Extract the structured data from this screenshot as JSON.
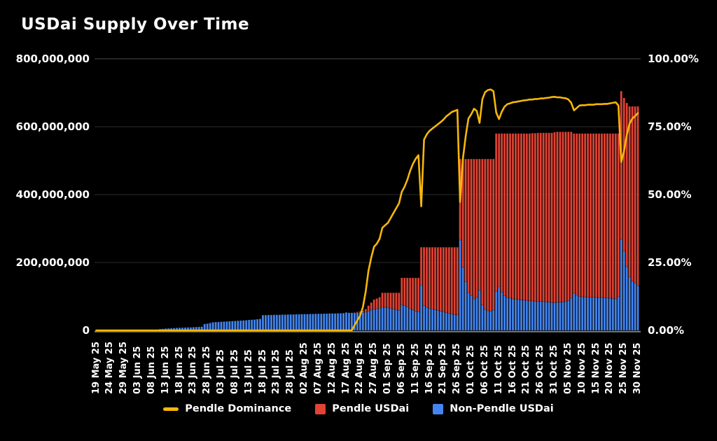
{
  "title": "USDai Supply Over Time",
  "colors": {
    "background": "#000000",
    "text": "#ffffff",
    "grid": "#2b2b2b",
    "grid_top": "#4a4a4a",
    "axis_line": "#7d7d7d",
    "pendle_dominance": "#F7B70A",
    "pendle_usdai": "#E14334",
    "non_pendle_usdai": "#4486F0"
  },
  "legend": {
    "items": [
      {
        "label": "Pendle Dominance",
        "swatch": "line",
        "color": "#F7B70A"
      },
      {
        "label": "Pendle USDai",
        "swatch": "square",
        "color": "#E14334"
      },
      {
        "label": "Non-Pendle USDai",
        "swatch": "square",
        "color": "#4486F0"
      }
    ]
  },
  "axes": {
    "y_left": {
      "tick_labels": [
        "800,000,000",
        "600,000,000",
        "400,000,000",
        "200,000,000",
        "0"
      ],
      "min": 0,
      "max": 800000000
    },
    "y_right": {
      "tick_labels": [
        "100.00%",
        "75.00%",
        "50.00%",
        "25.00%",
        "0.00%"
      ],
      "min": 0,
      "max": 100
    },
    "x": {
      "tick_every_n_days": 5,
      "tick_labels": [
        "19 May 25",
        "24 May 25",
        "29 May 25",
        "03 Jun 25",
        "08 Jun 25",
        "13 Jun 25",
        "18 Jun 25",
        "23 Jun 25",
        "28 Jun 25",
        "03 Jul 25",
        "08 Jul 25",
        "13 Jul 25",
        "18 Jul 25",
        "23 Jul 25",
        "28 Jul 25",
        "02 Aug 25",
        "07 Aug 25",
        "12 Aug 25",
        "17 Aug 25",
        "22 Aug 25",
        "27 Aug 25",
        "01 Sep 25",
        "06 Sep 25",
        "11 Sep 25",
        "16 Sep 25",
        "21 Sep 25",
        "26 Sep 25",
        "01 Oct 25",
        "06 Oct 25",
        "11 Oct 25",
        "16 Oct 25",
        "21 Oct 25",
        "26 Oct 25",
        "31 Oct 25",
        "05 Nov 25",
        "10 Nov 25",
        "15 Nov 25",
        "20 Nov 25",
        "25 Nov 25",
        "30 Nov 25"
      ]
    }
  },
  "chart_data": {
    "type": "combo_stacked_bar_line",
    "title": "USDai Supply Over Time",
    "x_start_date": "19 May 25",
    "x_end_date": "30 Nov 25",
    "x_interval": "daily",
    "values_unit": "millions",
    "y_left": {
      "min": 0,
      "max": 800
    },
    "y_right": {
      "min": 0,
      "max": 100,
      "unit": "%"
    },
    "grid": "horizontal",
    "legend_position": "bottom",
    "series": [
      {
        "name": "Non-Pendle USDai",
        "type": "bar",
        "stack": "supply",
        "axis": "left",
        "color": "#4486F0",
        "values": [
          0.5,
          0.5,
          0.5,
          0.5,
          0.5,
          0.5,
          0.5,
          0.5,
          0.5,
          0.5,
          0.5,
          0.5,
          0.5,
          0.5,
          0.5,
          0.5,
          0.5,
          0.5,
          0.5,
          0.5,
          0.5,
          0.5,
          0.5,
          4,
          4.5,
          5.5,
          6,
          6.5,
          7,
          7.5,
          8,
          8.2,
          8.5,
          8.8,
          9,
          9.6,
          10,
          10.5,
          11,
          19,
          20,
          22,
          24,
          24.5,
          25,
          25.5,
          26,
          26.5,
          27,
          27.5,
          28,
          28.5,
          29,
          29.5,
          30,
          31,
          31.5,
          32,
          33,
          34,
          45,
          45,
          45.5,
          45.5,
          46,
          46,
          46,
          46.5,
          46.5,
          47,
          47,
          47,
          47.5,
          47.5,
          48,
          48,
          48,
          48.5,
          48.5,
          49,
          49,
          49,
          49.5,
          49.5,
          50,
          50,
          50,
          50.5,
          50.5,
          51,
          53,
          52,
          52,
          52,
          52.5,
          53,
          53,
          54,
          57,
          60,
          63,
          64,
          65,
          69,
          68,
          67,
          65,
          63,
          61,
          59,
          76,
          73,
          69,
          64,
          60,
          57,
          55,
          133,
          73,
          68,
          65,
          63,
          61,
          59,
          57,
          55,
          52,
          50,
          48,
          47,
          46,
          266,
          186,
          144,
          111,
          103,
          93,
          97,
          119,
          75,
          62,
          58,
          57,
          60,
          115,
          129,
          113,
          102,
          97,
          95,
          93,
          92,
          91,
          90,
          89,
          88,
          87,
          87,
          86,
          86,
          85,
          85,
          84,
          83,
          82,
          82,
          83,
          83,
          84,
          85,
          88,
          95,
          110,
          105,
          100,
          99,
          99,
          98,
          98,
          98,
          97,
          97,
          97,
          96,
          96,
          95,
          94,
          93,
          100,
          268,
          233,
          188,
          158,
          145,
          139,
          132
        ]
      },
      {
        "name": "Pendle USDai",
        "type": "bar",
        "stack": "supply",
        "axis": "left",
        "color": "#E14334",
        "values": [
          0,
          0,
          0,
          0,
          0,
          0,
          0,
          0,
          0,
          0,
          0,
          0,
          0,
          0,
          0,
          0,
          0,
          0,
          0,
          0,
          0,
          0,
          0,
          0,
          0,
          0,
          0,
          0,
          0,
          0,
          0,
          0,
          0,
          0,
          0,
          0,
          0,
          0,
          0,
          0,
          0,
          0,
          0,
          0,
          0,
          0,
          0,
          0,
          0,
          0,
          0,
          0,
          0,
          0,
          0,
          0,
          0,
          0,
          0,
          0,
          0,
          0,
          0,
          0,
          0,
          0,
          0,
          0,
          0,
          0,
          0,
          0,
          0,
          0,
          0,
          0,
          0,
          0,
          0,
          0,
          0,
          0,
          0,
          0,
          0,
          0,
          0,
          0,
          0,
          0,
          0,
          0,
          0,
          1,
          2,
          3,
          5,
          9,
          16,
          22,
          28,
          30,
          33,
          42,
          43,
          44,
          46,
          48,
          50,
          52,
          79,
          82,
          86,
          91,
          95,
          98,
          100,
          112,
          172,
          177,
          180,
          182,
          184,
          186,
          188,
          190,
          193,
          195,
          197,
          198,
          199,
          239,
          319,
          361,
          394,
          402,
          412,
          408,
          386,
          430,
          443,
          447,
          448,
          445,
          465,
          451,
          467,
          478,
          483,
          485,
          487,
          488,
          489,
          490,
          491,
          492,
          493,
          494,
          495,
          496,
          497,
          497,
          498,
          499,
          500,
          502,
          502,
          502,
          501,
          500,
          497,
          490,
          470,
          475,
          480,
          481,
          481,
          482,
          482,
          482,
          483,
          483,
          483,
          484,
          484,
          485,
          486,
          487,
          480,
          437,
          452,
          482,
          502,
          515,
          521,
          528
        ]
      },
      {
        "name": "Pendle Dominance",
        "type": "line",
        "axis": "right",
        "color": "#F7B70A",
        "values": [
          0,
          0,
          0,
          0,
          0,
          0,
          0,
          0,
          0,
          0,
          0,
          0,
          0,
          0,
          0,
          0,
          0,
          0,
          0,
          0,
          0,
          0,
          0,
          0,
          0,
          0,
          0,
          0,
          0,
          0,
          0,
          0,
          0,
          0,
          0,
          0,
          0,
          0,
          0,
          0,
          0,
          0,
          0,
          0,
          0,
          0,
          0,
          0,
          0,
          0,
          0,
          0,
          0,
          0,
          0,
          0,
          0,
          0,
          0,
          0,
          0,
          0,
          0,
          0,
          0,
          0,
          0,
          0,
          0,
          0,
          0,
          0,
          0,
          0,
          0,
          0,
          0,
          0,
          0,
          0,
          0,
          0,
          0,
          0,
          0,
          0,
          0,
          0,
          0,
          0,
          0,
          0,
          0,
          1.9,
          3.7,
          5.4,
          8.6,
          14.3,
          21.9,
          26.8,
          30.8,
          31.9,
          33.7,
          37.8,
          38.7,
          39.6,
          41.4,
          43.2,
          45,
          46.8,
          51,
          52.9,
          55.5,
          58.7,
          61.3,
          63.2,
          64.5,
          45.7,
          70.2,
          72.2,
          73.5,
          74.3,
          75.1,
          75.9,
          76.7,
          77.6,
          78.8,
          79.6,
          80.4,
          80.8,
          81.2,
          47.3,
          63.2,
          71.5,
          78,
          79.6,
          81.6,
          80.8,
          76.4,
          85.1,
          87.7,
          88.5,
          88.7,
          88.1,
          80.2,
          77.8,
          80.5,
          82.4,
          83.3,
          83.6,
          84,
          84.1,
          84.3,
          84.5,
          84.7,
          84.8,
          85,
          85,
          85.2,
          85.2,
          85.4,
          85.4,
          85.6,
          85.7,
          85.9,
          86,
          85.8,
          85.8,
          85.6,
          85.5,
          85,
          83.8,
          81,
          81.9,
          82.8,
          82.9,
          82.9,
          83.1,
          83.1,
          83.1,
          83.3,
          83.3,
          83.3,
          83.4,
          83.4,
          83.6,
          83.8,
          84,
          82.8,
          62,
          66,
          71.9,
          76.1,
          78,
          78.9,
          80
        ]
      }
    ]
  }
}
